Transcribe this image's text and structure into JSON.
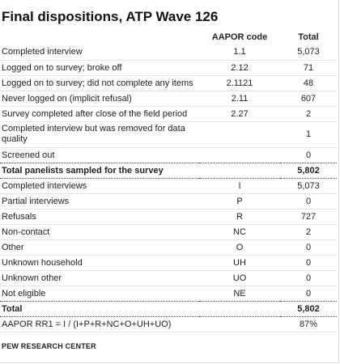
{
  "title": "Final dispositions, ATP Wave 126",
  "columns": {
    "aapor": "AAPOR code",
    "total": "Total"
  },
  "rows": [
    {
      "label": "Completed interview",
      "code": "1.1",
      "total": "5,073"
    },
    {
      "label": "Logged on to survey; broke off",
      "code": "2.12",
      "total": "71"
    },
    {
      "label": "Logged on to survey; did not complete any items",
      "code": "2.1121",
      "total": "48"
    },
    {
      "label": "Never logged on (implicit refusal)",
      "code": "2.11",
      "total": "607"
    },
    {
      "label": "Survey completed after close of the field period",
      "code": "2.27",
      "total": "2"
    },
    {
      "label": "Completed interview but was removed for data quality",
      "code": "",
      "total": "1"
    },
    {
      "label": "Screened out",
      "code": "",
      "total": "0"
    },
    {
      "label": "Total panelists sampled for the survey",
      "code": "",
      "total": "5,802"
    },
    {
      "label": "Completed interviews",
      "code": "I",
      "total": "5,073"
    },
    {
      "label": "Partial interviews",
      "code": "P",
      "total": "0"
    },
    {
      "label": "Refusals",
      "code": "R",
      "total": "727"
    },
    {
      "label": "Non-contact",
      "code": "NC",
      "total": "2"
    },
    {
      "label": "Other",
      "code": "O",
      "total": "0"
    },
    {
      "label": "Unknown household",
      "code": "UH",
      "total": "0"
    },
    {
      "label": "Unknown other",
      "code": "UO",
      "total": "0"
    },
    {
      "label": "Not eligible",
      "code": "NE",
      "total": "0"
    },
    {
      "label": "Total",
      "code": "",
      "total": "5,802"
    },
    {
      "label": "AAPOR RR1 = I / (I+P+R+NC+O+UH+UO)",
      "code": "",
      "total": "87%"
    }
  ],
  "source": "PEW RESEARCH CENTER"
}
